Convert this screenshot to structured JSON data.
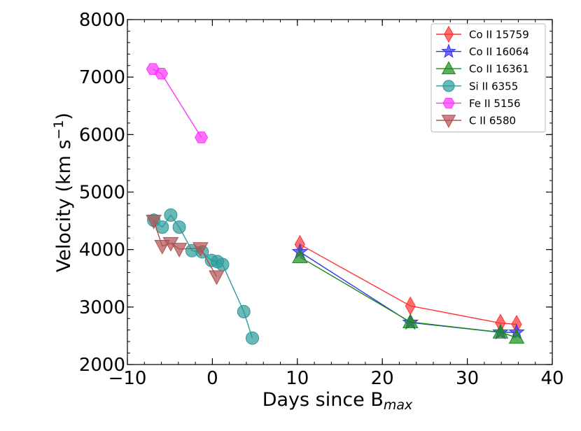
{
  "chart_data": {
    "type": "scatter",
    "xlabel": "Days since B",
    "xlabel_sub": "max",
    "ylabel": "Velocity (km s",
    "ylabel_sup": "−1",
    "ylabel_close": ")",
    "xlim": [
      -10,
      40
    ],
    "ylim": [
      2000,
      8000
    ],
    "xticks": [
      -10,
      0,
      10,
      20,
      30,
      40
    ],
    "xtick_labels": [
      "−10",
      "0",
      "10",
      "20",
      "30",
      "40"
    ],
    "yticks": [
      2000,
      3000,
      4000,
      5000,
      6000,
      7000,
      8000
    ],
    "ytick_labels": [
      "2000",
      "3000",
      "4000",
      "5000",
      "6000",
      "7000",
      "8000"
    ],
    "legend_position": "top-right",
    "series": [
      {
        "name": "Co II  15759",
        "color": "#ff3333",
        "marker": "diamond",
        "x": [
          10.3,
          23.3,
          33.9,
          35.8
        ],
        "y": [
          4090,
          3020,
          2720,
          2700
        ]
      },
      {
        "name": "Co II 16064",
        "color": "#3333ee",
        "marker": "star",
        "x": [
          10.3,
          23.3,
          33.9,
          35.8
        ],
        "y": [
          3960,
          2730,
          2560,
          2560
        ]
      },
      {
        "name": "Co II 16361",
        "color": "#1a8a1a",
        "marker": "triangle-up",
        "x": [
          10.3,
          23.3,
          33.9,
          35.8
        ],
        "y": [
          3870,
          2740,
          2560,
          2470
        ]
      },
      {
        "name": "Si II 6355",
        "color": "#2b9a9a",
        "marker": "circle",
        "x": [
          -6.9,
          -5.9,
          -4.9,
          -3.9,
          -2.4,
          -1.2,
          -0.1,
          0.6,
          1.2,
          3.7,
          4.7
        ],
        "y": [
          4510,
          4390,
          4600,
          4390,
          3980,
          3960,
          3810,
          3790,
          3740,
          2920,
          2460
        ]
      },
      {
        "name": "Fe II 5156",
        "color": "#ff33ff",
        "marker": "hexagon",
        "x": [
          -7.0,
          -6.0,
          -1.3
        ],
        "y": [
          7140,
          7060,
          5950
        ]
      },
      {
        "name": "C II 6580",
        "color": "#b05050",
        "marker": "triangle-down",
        "x": [
          -6.9,
          -5.9,
          -4.9,
          -3.9,
          -1.4,
          0.5
        ],
        "y": [
          4500,
          4060,
          4110,
          4010,
          4020,
          3530
        ]
      }
    ]
  }
}
